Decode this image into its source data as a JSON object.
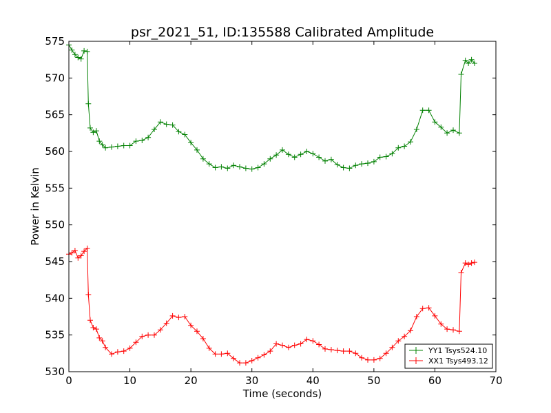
{
  "chart_data": {
    "type": "line",
    "title": "psr_2021_51, ID:135588 Calibrated Amplitude",
    "xlabel": "Time (seconds)",
    "ylabel": "Power in Kelvin",
    "xlim": [
      0,
      70
    ],
    "ylim": [
      530,
      575
    ],
    "xticks": [
      0,
      10,
      20,
      30,
      40,
      50,
      60,
      70
    ],
    "yticks": [
      530,
      535,
      540,
      545,
      550,
      555,
      560,
      565,
      570,
      575
    ],
    "grid": false,
    "legend_position": "lower-right",
    "marker": "+",
    "series": [
      {
        "name": "YY1 Tsys524.10",
        "color": "#008000",
        "x": [
          0,
          0.5,
          1,
          1.5,
          2,
          2.5,
          3,
          3.2,
          3.5,
          4,
          4.5,
          5,
          5.5,
          6,
          7,
          8,
          9,
          10,
          11,
          12,
          13,
          14,
          15,
          16,
          17,
          18,
          19,
          20,
          21,
          22,
          23,
          24,
          25,
          26,
          27,
          28,
          29,
          30,
          31,
          32,
          33,
          34,
          35,
          36,
          37,
          38,
          39,
          40,
          41,
          42,
          43,
          44,
          45,
          46,
          47,
          48,
          49,
          50,
          51,
          52,
          53,
          54,
          55,
          56,
          57,
          58,
          59,
          60,
          61,
          62,
          63,
          64,
          64.3,
          65,
          65.5,
          66,
          66.5
        ],
        "values": [
          574.5,
          573.8,
          573.2,
          572.8,
          572.6,
          573.7,
          573.6,
          566.5,
          563.2,
          562.6,
          562.8,
          561.4,
          560.9,
          560.5,
          560.6,
          560.7,
          560.8,
          560.8,
          561.4,
          561.5,
          561.9,
          563.0,
          564.0,
          563.7,
          563.6,
          562.7,
          562.3,
          561.2,
          560.2,
          559.0,
          558.3,
          557.8,
          557.9,
          557.7,
          558.1,
          557.9,
          557.7,
          557.6,
          557.8,
          558.3,
          559.0,
          559.5,
          560.2,
          559.6,
          559.2,
          559.6,
          560.0,
          559.7,
          559.2,
          558.7,
          558.9,
          558.2,
          557.8,
          557.7,
          558.1,
          558.3,
          558.4,
          558.6,
          559.2,
          559.3,
          559.7,
          560.5,
          560.7,
          561.3,
          563.0,
          565.6,
          565.6,
          564.0,
          563.3,
          562.5,
          562.9,
          562.5,
          570.5,
          572.4,
          572.0,
          572.5,
          572.0
        ]
      },
      {
        "name": "XX1 Tsys493.12",
        "color": "#ff0000",
        "x": [
          0,
          0.5,
          1,
          1.5,
          2,
          2.5,
          3,
          3.2,
          3.5,
          4,
          4.5,
          5,
          5.5,
          6,
          7,
          8,
          9,
          10,
          11,
          12,
          13,
          14,
          15,
          16,
          17,
          18,
          19,
          20,
          21,
          22,
          23,
          24,
          25,
          26,
          27,
          28,
          29,
          30,
          31,
          32,
          33,
          34,
          35,
          36,
          37,
          38,
          39,
          40,
          41,
          42,
          43,
          44,
          45,
          46,
          47,
          48,
          49,
          50,
          51,
          52,
          53,
          54,
          55,
          56,
          57,
          58,
          59,
          60,
          61,
          62,
          63,
          64,
          64.3,
          65,
          65.5,
          66,
          66.5
        ],
        "values": [
          546.0,
          546.2,
          546.5,
          545.5,
          545.8,
          546.4,
          546.8,
          540.5,
          537.0,
          536.0,
          535.8,
          534.6,
          534.2,
          533.3,
          532.4,
          532.7,
          532.8,
          533.2,
          534.0,
          534.8,
          535.0,
          535.0,
          535.7,
          536.6,
          537.6,
          537.4,
          537.5,
          536.3,
          535.5,
          534.5,
          533.2,
          532.4,
          532.4,
          532.5,
          531.8,
          531.2,
          531.2,
          531.5,
          531.9,
          532.3,
          532.8,
          533.8,
          533.6,
          533.3,
          533.6,
          533.8,
          534.4,
          534.2,
          533.7,
          533.1,
          533.0,
          532.9,
          532.8,
          532.8,
          532.5,
          531.9,
          531.6,
          531.6,
          531.8,
          532.5,
          533.3,
          534.2,
          534.8,
          535.6,
          537.5,
          538.6,
          538.7,
          537.6,
          536.5,
          535.8,
          535.7,
          535.5,
          543.5,
          544.8,
          544.6,
          544.8,
          544.9
        ]
      }
    ]
  }
}
